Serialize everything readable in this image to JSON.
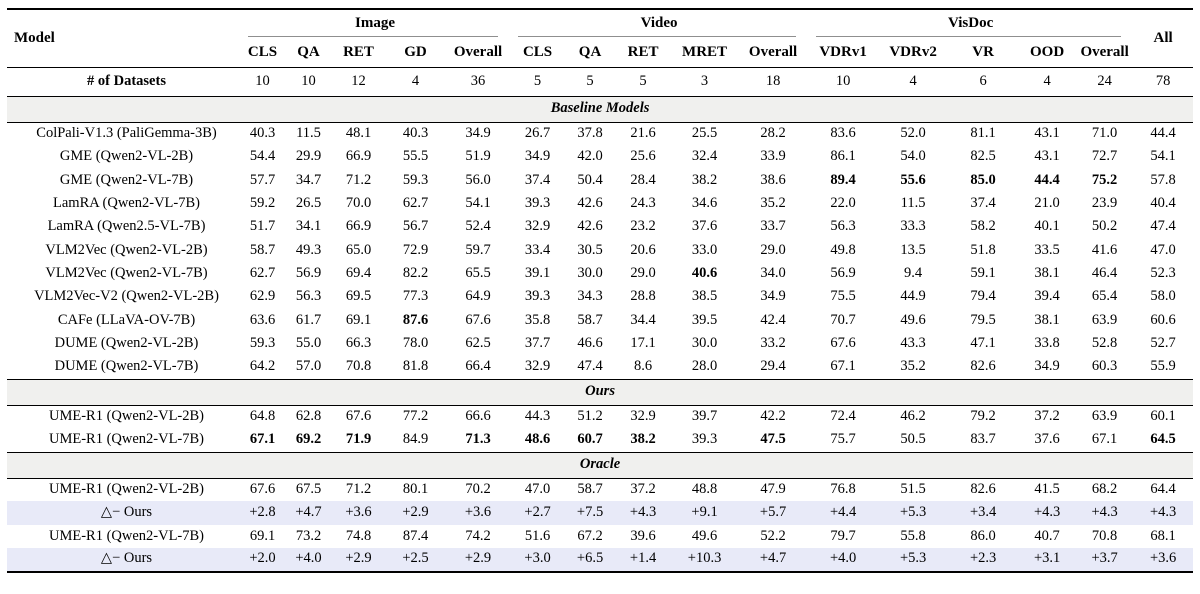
{
  "colors": {
    "highlight_row_bg": "#e8eaf8",
    "section_bar_bg": "#f0f0ee",
    "group_rule": "#8f8f8f"
  },
  "table": {
    "model_header": "Model",
    "all_header": "All",
    "groups": [
      {
        "label": "Image",
        "span": 5
      },
      {
        "label": "Video",
        "span": 5
      },
      {
        "label": "VisDoc",
        "span": 5
      }
    ],
    "subheaders": [
      "CLS",
      "QA",
      "RET",
      "GD",
      "Overall",
      "CLS",
      "QA",
      "RET",
      "MRET",
      "Overall",
      "VDRv1",
      "VDRv2",
      "VR",
      "OOD",
      "Overall"
    ],
    "datasets_row": {
      "label": "# of Datasets",
      "values": [
        "10",
        "10",
        "12",
        "4",
        "36",
        "5",
        "5",
        "5",
        "3",
        "18",
        "10",
        "4",
        "6",
        "4",
        "24",
        "78"
      ]
    },
    "sections": [
      {
        "title": "Baseline Models",
        "rows": [
          {
            "model": "ColPali-V1.3 (PaliGemma-3B)",
            "values": [
              "40.3",
              "11.5",
              "48.1",
              "40.3",
              "34.9",
              "26.7",
              "37.8",
              "21.6",
              "25.5",
              "28.2",
              "83.6",
              "52.0",
              "81.1",
              "43.1",
              "71.0",
              "44.4"
            ],
            "bold": [],
            "highlight": false
          },
          {
            "model": "GME (Qwen2-VL-2B)",
            "values": [
              "54.4",
              "29.9",
              "66.9",
              "55.5",
              "51.9",
              "34.9",
              "42.0",
              "25.6",
              "32.4",
              "33.9",
              "86.1",
              "54.0",
              "82.5",
              "43.1",
              "72.7",
              "54.1"
            ],
            "bold": [],
            "highlight": false
          },
          {
            "model": "GME (Qwen2-VL-7B)",
            "values": [
              "57.7",
              "34.7",
              "71.2",
              "59.3",
              "56.0",
              "37.4",
              "50.4",
              "28.4",
              "38.2",
              "38.6",
              "89.4",
              "55.6",
              "85.0",
              "44.4",
              "75.2",
              "57.8"
            ],
            "bold": [
              10,
              11,
              12,
              13,
              14
            ],
            "highlight": false
          },
          {
            "model": "LamRA (Qwen2-VL-7B)",
            "values": [
              "59.2",
              "26.5",
              "70.0",
              "62.7",
              "54.1",
              "39.3",
              "42.6",
              "24.3",
              "34.6",
              "35.2",
              "22.0",
              "11.5",
              "37.4",
              "21.0",
              "23.9",
              "40.4"
            ],
            "bold": [],
            "highlight": false
          },
          {
            "model": "LamRA (Qwen2.5-VL-7B)",
            "values": [
              "51.7",
              "34.1",
              "66.9",
              "56.7",
              "52.4",
              "32.9",
              "42.6",
              "23.2",
              "37.6",
              "33.7",
              "56.3",
              "33.3",
              "58.2",
              "40.1",
              "50.2",
              "47.4"
            ],
            "bold": [],
            "highlight": false
          },
          {
            "model": "VLM2Vec (Qwen2-VL-2B)",
            "values": [
              "58.7",
              "49.3",
              "65.0",
              "72.9",
              "59.7",
              "33.4",
              "30.5",
              "20.6",
              "33.0",
              "29.0",
              "49.8",
              "13.5",
              "51.8",
              "33.5",
              "41.6",
              "47.0"
            ],
            "bold": [],
            "highlight": false
          },
          {
            "model": "VLM2Vec (Qwen2-VL-7B)",
            "values": [
              "62.7",
              "56.9",
              "69.4",
              "82.2",
              "65.5",
              "39.1",
              "30.0",
              "29.0",
              "40.6",
              "34.0",
              "56.9",
              "9.4",
              "59.1",
              "38.1",
              "46.4",
              "52.3"
            ],
            "bold": [
              8
            ],
            "highlight": false
          },
          {
            "model": "VLM2Vec-V2 (Qwen2-VL-2B)",
            "values": [
              "62.9",
              "56.3",
              "69.5",
              "77.3",
              "64.9",
              "39.3",
              "34.3",
              "28.8",
              "38.5",
              "34.9",
              "75.5",
              "44.9",
              "79.4",
              "39.4",
              "65.4",
              "58.0"
            ],
            "bold": [],
            "highlight": false
          },
          {
            "model": "CAFe (LLaVA-OV-7B)",
            "values": [
              "63.6",
              "61.7",
              "69.1",
              "87.6",
              "67.6",
              "35.8",
              "58.7",
              "34.4",
              "39.5",
              "42.4",
              "70.7",
              "49.6",
              "79.5",
              "38.1",
              "63.9",
              "60.6"
            ],
            "bold": [
              3
            ],
            "highlight": false
          },
          {
            "model": "DUME (Qwen2-VL-2B)",
            "values": [
              "59.3",
              "55.0",
              "66.3",
              "78.0",
              "62.5",
              "37.7",
              "46.6",
              "17.1",
              "30.0",
              "33.2",
              "67.6",
              "43.3",
              "47.1",
              "33.8",
              "52.8",
              "52.7"
            ],
            "bold": [],
            "highlight": false
          },
          {
            "model": "DUME (Qwen2-VL-7B)",
            "values": [
              "64.2",
              "57.0",
              "70.8",
              "81.8",
              "66.4",
              "32.9",
              "47.4",
              "8.6",
              "28.0",
              "29.4",
              "67.1",
              "35.2",
              "82.6",
              "34.9",
              "60.3",
              "55.9"
            ],
            "bold": [],
            "highlight": false
          }
        ]
      },
      {
        "title": "Ours",
        "rows": [
          {
            "model": "UME-R1 (Qwen2-VL-2B)",
            "values": [
              "64.8",
              "62.8",
              "67.6",
              "77.2",
              "66.6",
              "44.3",
              "51.2",
              "32.9",
              "39.7",
              "42.2",
              "72.4",
              "46.2",
              "79.2",
              "37.2",
              "63.9",
              "60.1"
            ],
            "bold": [],
            "highlight": false
          },
          {
            "model": "UME-R1 (Qwen2-VL-7B)",
            "values": [
              "67.1",
              "69.2",
              "71.9",
              "84.9",
              "71.3",
              "48.6",
              "60.7",
              "38.2",
              "39.3",
              "47.5",
              "75.7",
              "50.5",
              "83.7",
              "37.6",
              "67.1",
              "64.5"
            ],
            "bold": [
              0,
              1,
              2,
              4,
              5,
              6,
              7,
              9,
              15
            ],
            "highlight": false
          }
        ]
      },
      {
        "title": "Oracle",
        "rows": [
          {
            "model": "UME-R1 (Qwen2-VL-2B)",
            "values": [
              "67.6",
              "67.5",
              "71.2",
              "80.1",
              "70.2",
              "47.0",
              "58.7",
              "37.2",
              "48.8",
              "47.9",
              "76.8",
              "51.5",
              "82.6",
              "41.5",
              "68.2",
              "64.4"
            ],
            "bold": [],
            "highlight": false
          },
          {
            "model": "△− Ours",
            "values": [
              "+2.8",
              "+4.7",
              "+3.6",
              "+2.9",
              "+3.6",
              "+2.7",
              "+7.5",
              "+4.3",
              "+9.1",
              "+5.7",
              "+4.4",
              "+5.3",
              "+3.4",
              "+4.3",
              "+4.3",
              "+4.3"
            ],
            "bold": [],
            "highlight": true
          },
          {
            "model": "UME-R1 (Qwen2-VL-7B)",
            "values": [
              "69.1",
              "73.2",
              "74.8",
              "87.4",
              "74.2",
              "51.6",
              "67.2",
              "39.6",
              "49.6",
              "52.2",
              "79.7",
              "55.8",
              "86.0",
              "40.7",
              "70.8",
              "68.1"
            ],
            "bold": [],
            "highlight": false
          },
          {
            "model": "△− Ours",
            "values": [
              "+2.0",
              "+4.0",
              "+2.9",
              "+2.5",
              "+2.9",
              "+3.0",
              "+6.5",
              "+1.4",
              "+10.3",
              "+4.7",
              "+4.0",
              "+5.3",
              "+2.3",
              "+3.1",
              "+3.7",
              "+3.6"
            ],
            "bold": [],
            "highlight": true
          }
        ]
      }
    ]
  }
}
